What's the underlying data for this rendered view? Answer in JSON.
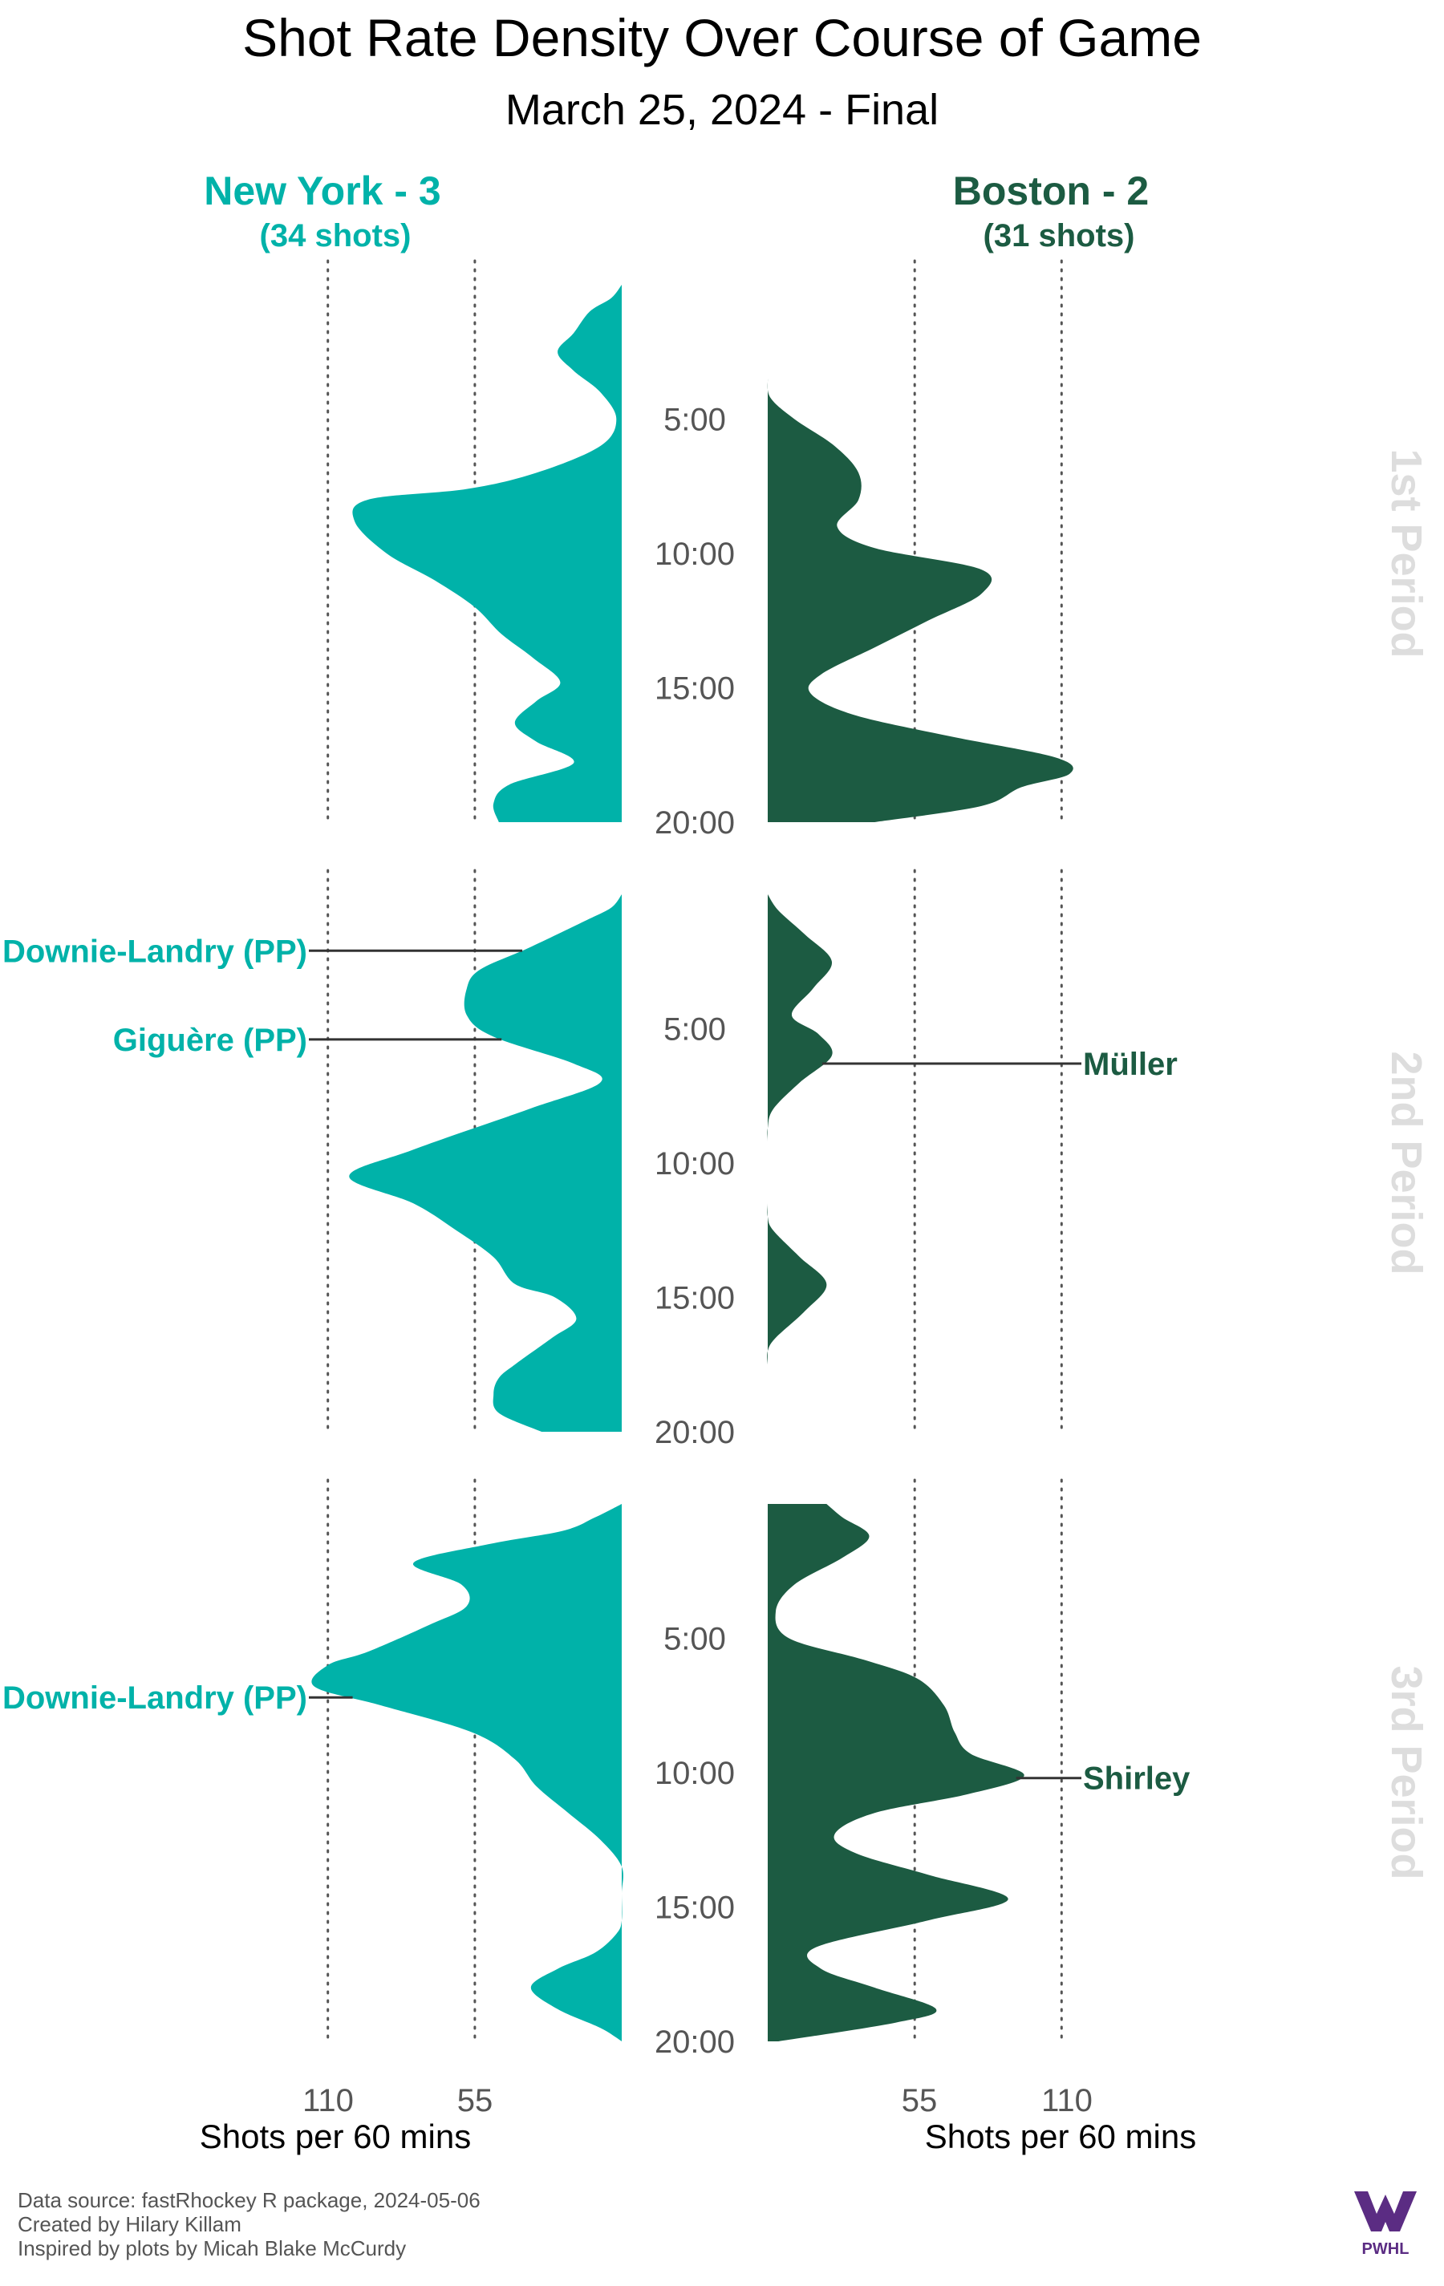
{
  "chart_data": {
    "type": "area",
    "title": "Shot Rate Density Over Course of Game",
    "subtitle": "March 25, 2024 - Final",
    "orientation": "vertical-mirrored",
    "x_label": "Shots per 60 mins",
    "x_ticks": [
      55,
      110
    ],
    "y_ticks": [
      "5:00",
      "10:00",
      "15:00",
      "20:00"
    ],
    "grid": "dotted vertical lines at 55 and 110",
    "periods": [
      "1st Period",
      "2nd Period",
      "3rd Period"
    ],
    "teams": [
      {
        "key": "ny",
        "name": "New York - 3",
        "shots_label": "(34 shots)",
        "color": "#00b2a9",
        "side": "left",
        "series": [
          {
            "period": "1st Period",
            "minutes": [
              0,
              0.5,
              1,
              1.8,
              2.5,
              3.2,
              4,
              5,
              6,
              7,
              7.6,
              8,
              8.8,
              10,
              11,
              12,
              13,
              13.9,
              14.8,
              15.5,
              16.3,
              17,
              17.8,
              18.6,
              19.3,
              20
            ],
            "values": [
              0,
              4,
              12,
              18,
              24,
              18,
              8,
              2,
              8,
              32,
              58,
              95,
              100,
              88,
              70,
              55,
              45,
              33,
              23,
              32,
              40,
              32,
              18,
              42,
              48,
              46
            ]
          },
          {
            "period": "2nd Period",
            "minutes": [
              0,
              0.5,
              1,
              2,
              2.8,
              3.5,
              4.5,
              5.3,
              6.3,
              7,
              8,
              9.5,
              10.5,
              11.5,
              12.5,
              13.5,
              14.5,
              15,
              15.8,
              16.5,
              17.5,
              18,
              18.6,
              19.3,
              20
            ],
            "values": [
              0,
              4,
              14,
              35,
              53,
              58,
              58,
              48,
              18,
              8,
              35,
              78,
              102,
              78,
              62,
              48,
              40,
              25,
              17,
              26,
              40,
              46,
              48,
              46,
              30
            ]
          },
          {
            "period": "3rd Period",
            "minutes": [
              0,
              0.5,
              1,
              1.5,
              2.2,
              3,
              3.8,
              4.5,
              5.5,
              6,
              6.8,
              7.5,
              8.5,
              9.5,
              10.5,
              11.5,
              12.5,
              13.5,
              14.5,
              15.5,
              16,
              16.7,
              17.3,
              18,
              18.8,
              19.5,
              20
            ],
            "values": [
              0,
              10,
              22,
              50,
              78,
              60,
              58,
              72,
              95,
              110,
              115,
              90,
              56,
              40,
              32,
              20,
              8,
              0,
              0,
              0,
              2,
              10,
              24,
              34,
              24,
              8,
              0
            ]
          }
        ],
        "annotations": [
          {
            "label": "Downie-Landry (PP)",
            "period": "2nd Period",
            "minute": 2.1
          },
          {
            "label": "Giguère (PP)",
            "period": "2nd Period",
            "minute": 5.4
          },
          {
            "label": "Downie-Landry (PP)",
            "period": "3rd Period",
            "minute": 7.2
          }
        ]
      },
      {
        "key": "bos",
        "name": "Boston - 2",
        "shots_label": "(31 shots)",
        "color": "#1c5b42",
        "side": "right",
        "series": [
          {
            "period": "1st Period",
            "minutes": [
              3.5,
              4.2,
              5,
              6,
              7,
              8,
              9,
              9.8,
              10.6,
              11.5,
              12.5,
              13.5,
              14.5,
              15.2,
              16,
              16.8,
              17.6,
              18.2,
              18.7,
              19.4,
              20
            ],
            "values": [
              0,
              1,
              10,
              25,
              34,
              34,
              26,
              40,
              80,
              80,
              60,
              40,
              20,
              16,
              32,
              68,
              108,
              113,
              95,
              80,
              40
            ]
          },
          {
            "period": "2nd Period",
            "minutes": [
              0,
              0.6,
              1.5,
              2.5,
              3.5,
              4.5,
              5.2,
              6,
              7,
              8,
              8.7,
              9.2,
              10,
              11,
              11.5,
              12,
              12.5,
              13.5,
              14.5,
              15.5,
              16.5,
              17,
              17.5
            ],
            "values": [
              0,
              4,
              14,
              24,
              17,
              9,
              19,
              24,
              12,
              2,
              0,
              0,
              0,
              0,
              0,
              0,
              2,
              12,
              22,
              14,
              3,
              0,
              0
            ]
          },
          {
            "period": "3rd Period",
            "minutes": [
              0,
              0.5,
              1.2,
              2,
              3,
              4,
              5,
              5.8,
              6.5,
              7.5,
              8.5,
              9.3,
              10.1,
              10.8,
              11.5,
              12.3,
              13,
              13.8,
              14.7,
              15.5,
              16.5,
              17.3,
              18,
              18.8,
              19.3,
              20
            ],
            "values": [
              22,
              28,
              38,
              28,
              10,
              3,
              8,
              36,
              56,
              66,
              70,
              76,
              96,
              75,
              40,
              25,
              33,
              60,
              90,
              60,
              18,
              20,
              40,
              63,
              48,
              4
            ]
          }
        ],
        "annotations": [
          {
            "label": "Müller",
            "period": "2nd Period",
            "minute": 6.3
          },
          {
            "label": "Shirley",
            "period": "3rd Period",
            "minute": 10.2
          }
        ]
      }
    ],
    "footer": [
      "Data source: fastRhockey R package, 2024-05-06",
      "Created by Hilary Killam",
      "Inspired by plots by Micah Blake McCurdy"
    ],
    "logo_text": "PWHL"
  }
}
